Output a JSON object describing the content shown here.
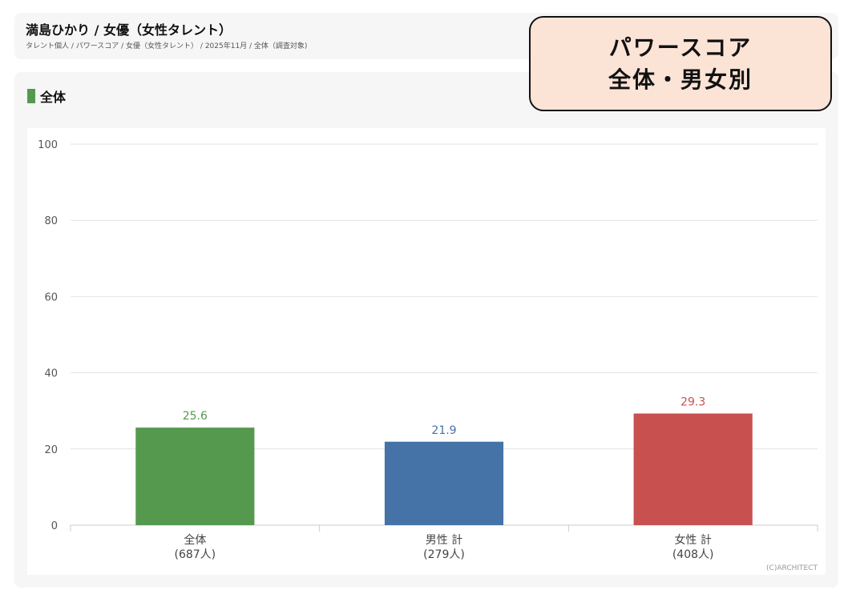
{
  "header": {
    "title": "満島ひかり / 女優（女性タレント）",
    "breadcrumb": "タレント個人 / パワースコア / 女優（女性タレント） / 2025年11月 / 全体（調査対象)"
  },
  "callout": {
    "line1": "パワースコア",
    "line2": "全体・男女別"
  },
  "section": {
    "title": "全体"
  },
  "colors": {
    "accent": "#55994f",
    "total": "#55994f",
    "male": "#4573a7",
    "female": "#c85150"
  },
  "chart_data": {
    "type": "bar",
    "categories": [
      {
        "line1": "全体",
        "line2": "(687人)"
      },
      {
        "line1": "男性 計",
        "line2": "(279人)"
      },
      {
        "line1": "女性 計",
        "line2": "(408人)"
      }
    ],
    "values": [
      25.6,
      21.9,
      29.3
    ],
    "value_labels": [
      "25.6",
      "21.9",
      "29.3"
    ],
    "bar_colors": [
      "#55994f",
      "#4573a7",
      "#c85150"
    ],
    "ylim": [
      0,
      100
    ],
    "yticks": [
      "0",
      "20",
      "40",
      "60",
      "80",
      "100"
    ],
    "grid": true,
    "credit": "(C)ARCHITECT"
  }
}
